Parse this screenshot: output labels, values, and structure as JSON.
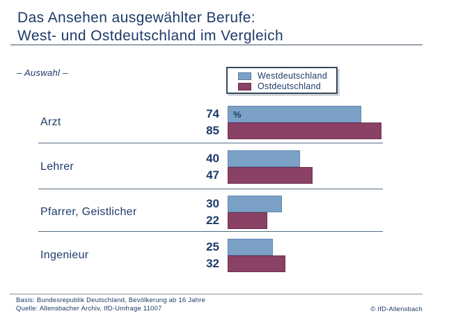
{
  "title": {
    "line1": "Das Ansehen ausgewählter Berufe:",
    "line2": "West- und Ostdeutschland im Vergleich"
  },
  "subtitle": "– Auswahl –",
  "unit_label": "%",
  "legend": {
    "items": [
      {
        "label": "Westdeutschland",
        "color": "#7ba1c7"
      },
      {
        "label": "Ostdeutschland",
        "color": "#8b4066"
      }
    ]
  },
  "chart_data": {
    "type": "bar",
    "orientation": "horizontal",
    "title": "Das Ansehen ausgewählter Berufe: West- und Ostdeutschland im Vergleich",
    "subtitle": "– Auswahl –",
    "categories": [
      "Arzt",
      "Lehrer",
      "Pfarrer, Geistlicher",
      "Ingenieur"
    ],
    "series": [
      {
        "name": "Westdeutschland",
        "color": "#7ba1c7",
        "values": [
          74,
          40,
          30,
          25
        ]
      },
      {
        "name": "Ostdeutschland",
        "color": "#8b4066",
        "values": [
          85,
          47,
          22,
          32
        ]
      }
    ],
    "value_unit": "%",
    "xlim": [
      0,
      100
    ],
    "grid": false,
    "legend_position": "top-center",
    "value_labels": "left-of-bars"
  },
  "footer": {
    "basis": "Basis: Bundesrepublik Deutschland, Bevölkerung ab 16 Jahre",
    "quelle": "Quelle: Allensbacher Archiv, IfD-Umfrage 11007",
    "copyright": "© IfD-Allensbach"
  },
  "colors": {
    "navy_text": "#1c3a68",
    "west_bar": "#7ba1c7",
    "ost_bar": "#8b4066",
    "divider": "#566b82",
    "title_rule": "#3e5166",
    "footer_rule": "#909090"
  }
}
